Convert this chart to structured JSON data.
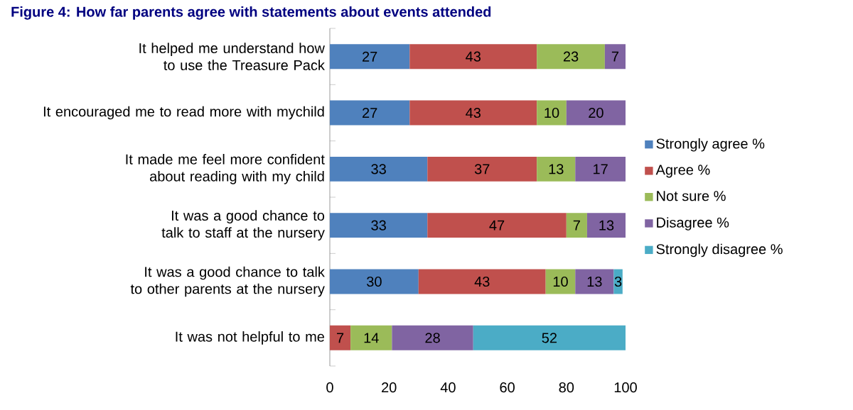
{
  "chart_data": {
    "type": "bar",
    "orientation": "horizontal",
    "stacked": true,
    "title": "Figure 4: How far parents agree with statements about events attended",
    "categories": [
      "It helped me understand how to use the Treasure Pack",
      "It encouraged me to read more with mychild",
      "It made me feel more confident about reading with my child",
      "It was a good chance to talk to staff at the nursery",
      "It was a good chance to talk to other parents at the nursery",
      "It was not helpful to me"
    ],
    "series": [
      {
        "name": "Strongly agree %",
        "color": "#4f81bd",
        "values": [
          27,
          27,
          33,
          33,
          30,
          null
        ],
        "value_labels": [
          "27",
          "27",
          "33",
          "33",
          "30",
          null
        ]
      },
      {
        "name": "Agree %",
        "color": "#c0504d",
        "values": [
          43,
          43,
          37,
          47,
          43,
          7
        ],
        "value_labels": [
          "43",
          "43",
          "37",
          "47",
          "43",
          "7"
        ]
      },
      {
        "name": "Not sure %",
        "color": "#9bbb59",
        "values": [
          23,
          10,
          13,
          7,
          10,
          14
        ],
        "value_labels": [
          "23",
          "10",
          "13",
          "7",
          "10",
          "14"
        ]
      },
      {
        "name": "Disagree %",
        "color": "#8064a2",
        "values": [
          7,
          20,
          17,
          13,
          13,
          27.5
        ],
        "value_labels": [
          "7",
          "20",
          "17",
          "13",
          "13",
          "28"
        ]
      },
      {
        "name": "Strongly disagree %",
        "color": "#4bacc6",
        "values": [
          null,
          null,
          null,
          null,
          3,
          51.5
        ],
        "value_labels": [
          null,
          null,
          null,
          null,
          "3",
          "52"
        ]
      }
    ],
    "xlim": [
      0,
      100
    ],
    "xticks": [
      0,
      20,
      40,
      60,
      80,
      100
    ],
    "legend": "right",
    "grid": false
  }
}
